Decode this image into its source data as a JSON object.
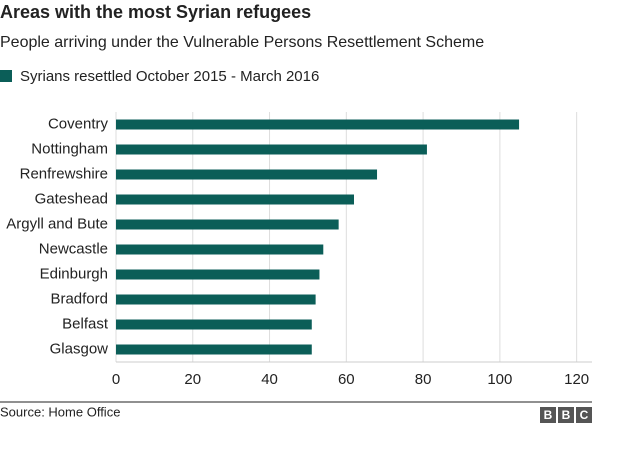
{
  "chart_data": {
    "type": "bar",
    "orientation": "horizontal",
    "title": "Areas with the most Syrian refugees",
    "subtitle": "People arriving under the Vulnerable Persons Resettlement Scheme",
    "categories": [
      "Coventry",
      "Nottingham",
      "Renfrewshire",
      "Gateshead",
      "Argyll and Bute",
      "Newcastle",
      "Edinburgh",
      "Bradford",
      "Belfast",
      "Glasgow"
    ],
    "series": [
      {
        "name": "Syrians resettled October 2015 - March 2016",
        "color": "#0b5e58",
        "values": [
          105,
          81,
          68,
          62,
          58,
          54,
          53,
          52,
          51,
          51
        ]
      }
    ],
    "xlim": [
      0,
      124
    ],
    "xticks": [
      0,
      20,
      40,
      60,
      80,
      100,
      120
    ],
    "grid": true,
    "source": "Source: Home Office",
    "logo": [
      "B",
      "B",
      "C"
    ]
  }
}
